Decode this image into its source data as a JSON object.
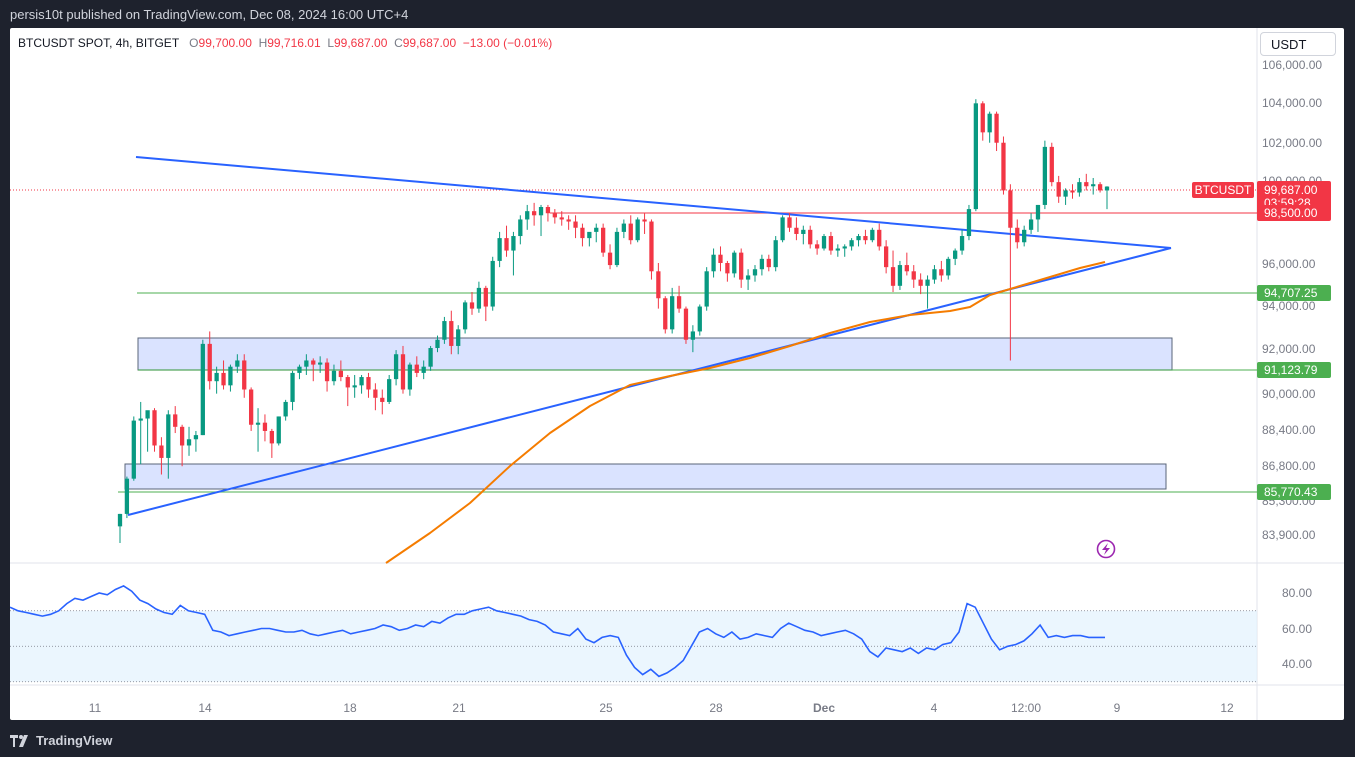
{
  "header": {
    "publisher": "persis10t published on TradingView.com, Dec 08, 2024 16:00 UTC+4"
  },
  "footer": {
    "brand": "TradingView"
  },
  "legend": {
    "symbol": "BTCUSDT SPOT, 4h, BITGET",
    "o_label": "O",
    "o_value": "99,700.00",
    "h_label": "H",
    "h_value": "99,716.01",
    "l_label": "L",
    "l_value": "99,687.00",
    "c_label": "C",
    "c_value": "99,687.00",
    "change": "−13.00 (−0.01%)"
  },
  "unit_button": "USDT",
  "colors": {
    "up": "#089981",
    "down": "#f23645",
    "trend": "#2962ff",
    "ma": "#f57c00",
    "rsi": "#2962ff",
    "zone": "#d6e0ff",
    "level": "#66bb6a"
  },
  "chart_data": {
    "type": "candlestick",
    "interval": "4h",
    "price_axis": {
      "ticks": [
        "106,000.00",
        "104,000.00",
        "102,000.00",
        "100,000.00",
        "96,000.00",
        "94,000.00",
        "92,000.00",
        "90,000.00",
        "88,400.00",
        "86,800.00",
        "85,300.00",
        "83,900.00"
      ]
    },
    "time_axis": {
      "ticks": [
        "11",
        "14",
        "18",
        "21",
        "25",
        "28",
        "Dec",
        "4",
        "12:00",
        "9",
        "12"
      ]
    },
    "last_price": {
      "symbol": "BTCUSDT",
      "price": "99,687.00",
      "countdown": "03:59:28"
    },
    "levels": [
      {
        "price": "98,500.00",
        "color": "#f23645"
      },
      {
        "price": "94,707.25",
        "color": "#4caf50"
      },
      {
        "price": "91,123.79",
        "color": "#4caf50"
      },
      {
        "price": "85,770.43",
        "color": "#4caf50"
      }
    ],
    "rsi_axis": {
      "ticks": [
        "80.00",
        "60.00",
        "40.00"
      ]
    },
    "candles": [
      [
        83300,
        83900,
        82500,
        83900
      ],
      [
        83900,
        85700,
        83700,
        85600
      ],
      [
        85600,
        88600,
        85500,
        88400
      ],
      [
        88400,
        89300,
        86300,
        88500
      ],
      [
        88500,
        88700,
        86900,
        88900
      ],
      [
        88900,
        89000,
        86900,
        87200
      ],
      [
        87200,
        87600,
        85800,
        86600
      ],
      [
        86600,
        88900,
        85600,
        88700
      ],
      [
        88700,
        89100,
        87800,
        88100
      ],
      [
        88100,
        88200,
        86200,
        87200
      ],
      [
        87200,
        88100,
        86700,
        87500
      ],
      [
        87500,
        87900,
        86900,
        87700
      ],
      [
        87700,
        92300,
        87700,
        92100
      ],
      [
        92100,
        92700,
        89900,
        90300
      ],
      [
        90300,
        91000,
        89700,
        90700
      ],
      [
        90700,
        91300,
        89900,
        90100
      ],
      [
        90100,
        91100,
        89800,
        91000
      ],
      [
        91000,
        91600,
        90700,
        91300
      ],
      [
        91300,
        91600,
        89500,
        89900
      ],
      [
        89900,
        90000,
        87900,
        88200
      ],
      [
        88200,
        89000,
        86900,
        88300
      ],
      [
        88300,
        88700,
        87400,
        87900
      ],
      [
        87900,
        88000,
        86600,
        87300
      ],
      [
        87300,
        88600,
        87200,
        88600
      ],
      [
        88600,
        89400,
        88400,
        89300
      ],
      [
        89300,
        90800,
        88900,
        90700
      ],
      [
        90700,
        91100,
        90400,
        91000
      ],
      [
        91000,
        91600,
        90600,
        91300
      ],
      [
        91300,
        91400,
        90300,
        91100
      ],
      [
        91100,
        91500,
        90700,
        91200
      ],
      [
        91200,
        91400,
        89800,
        90300
      ],
      [
        90300,
        91100,
        90100,
        90800
      ],
      [
        90800,
        91300,
        90300,
        90500
      ],
      [
        90500,
        90600,
        89100,
        90000
      ],
      [
        90000,
        90600,
        89500,
        90100
      ],
      [
        90100,
        90600,
        89700,
        90500
      ],
      [
        90500,
        90700,
        89500,
        89900
      ],
      [
        89900,
        90200,
        88900,
        89500
      ],
      [
        89500,
        89900,
        88700,
        89300
      ],
      [
        89300,
        90600,
        89200,
        90400
      ],
      [
        90400,
        91800,
        90100,
        91600
      ],
      [
        91600,
        92000,
        89700,
        89900
      ],
      [
        89900,
        91200,
        89600,
        91100
      ],
      [
        91100,
        91500,
        90500,
        90700
      ],
      [
        90700,
        91300,
        90400,
        91000
      ],
      [
        91000,
        92000,
        90800,
        91900
      ],
      [
        91900,
        92500,
        91700,
        92300
      ],
      [
        92300,
        93400,
        92100,
        93200
      ],
      [
        93200,
        93700,
        91600,
        92000
      ],
      [
        92000,
        93000,
        91600,
        92800
      ],
      [
        92800,
        94200,
        92600,
        94100
      ],
      [
        94100,
        94600,
        93500,
        93800
      ],
      [
        93800,
        95100,
        93600,
        94800
      ],
      [
        94800,
        94900,
        93200,
        93900
      ],
      [
        93900,
        96300,
        93700,
        96100
      ],
      [
        96100,
        97500,
        95800,
        97200
      ],
      [
        97200,
        97800,
        96300,
        96600
      ],
      [
        96600,
        97500,
        95400,
        97300
      ],
      [
        97300,
        98300,
        96900,
        98100
      ],
      [
        98100,
        98800,
        97600,
        98500
      ],
      [
        98500,
        98900,
        97800,
        98300
      ],
      [
        98300,
        98800,
        97300,
        98700
      ],
      [
        98700,
        98800,
        98000,
        98400
      ],
      [
        98400,
        98600,
        97900,
        98200
      ],
      [
        98200,
        98500,
        97800,
        98100
      ],
      [
        98100,
        98300,
        97600,
        98000
      ],
      [
        98000,
        98300,
        97200,
        97700
      ],
      [
        97700,
        97900,
        96800,
        97200
      ],
      [
        97200,
        97400,
        96800,
        97500
      ],
      [
        97500,
        97900,
        97000,
        97700
      ],
      [
        97700,
        97900,
        96300,
        96500
      ],
      [
        96500,
        96900,
        95700,
        95900
      ],
      [
        95900,
        97700,
        95800,
        97500
      ],
      [
        97500,
        98100,
        97200,
        97900
      ],
      [
        97900,
        98300,
        96900,
        97100
      ],
      [
        97100,
        98200,
        97000,
        98100
      ],
      [
        98100,
        98400,
        97400,
        98000
      ],
      [
        98000,
        98100,
        95200,
        95600
      ],
      [
        95600,
        96000,
        93800,
        94300
      ],
      [
        94300,
        94400,
        92600,
        92800
      ],
      [
        92800,
        94800,
        92600,
        94400
      ],
      [
        94400,
        94900,
        93600,
        93800
      ],
      [
        93800,
        93900,
        92100,
        92300
      ],
      [
        92300,
        93000,
        91700,
        92700
      ],
      [
        92700,
        94000,
        92500,
        93900
      ],
      [
        93900,
        95800,
        93700,
        95600
      ],
      [
        95600,
        96700,
        95300,
        96400
      ],
      [
        96400,
        96800,
        95600,
        96000
      ],
      [
        96000,
        96100,
        95100,
        95500
      ],
      [
        95500,
        96600,
        95300,
        96500
      ],
      [
        96500,
        96700,
        94800,
        95200
      ],
      [
        95200,
        95700,
        94700,
        95400
      ],
      [
        95400,
        95900,
        95100,
        95700
      ],
      [
        95700,
        96400,
        95400,
        96200
      ],
      [
        96200,
        96400,
        95600,
        95800
      ],
      [
        95800,
        97300,
        95600,
        97100
      ],
      [
        97100,
        98300,
        97000,
        98200
      ],
      [
        98200,
        98400,
        97500,
        97700
      ],
      [
        97700,
        98200,
        97100,
        97400
      ],
      [
        97400,
        97800,
        96900,
        97600
      ],
      [
        97600,
        97800,
        96700,
        96900
      ],
      [
        96900,
        97100,
        96400,
        96700
      ],
      [
        96700,
        97400,
        96600,
        97300
      ],
      [
        97300,
        97500,
        96400,
        96600
      ],
      [
        96600,
        96900,
        96300,
        96700
      ],
      [
        96700,
        96900,
        96300,
        96800
      ],
      [
        96800,
        97200,
        96600,
        97100
      ],
      [
        97100,
        97400,
        96800,
        97300
      ],
      [
        97300,
        97600,
        96900,
        97100
      ],
      [
        97100,
        97700,
        97000,
        97600
      ],
      [
        97600,
        97900,
        96600,
        96800
      ],
      [
        96800,
        97100,
        95500,
        95800
      ],
      [
        95800,
        96600,
        94600,
        94900
      ],
      [
        94900,
        96100,
        94700,
        95900
      ],
      [
        95900,
        96500,
        95400,
        95600
      ],
      [
        95600,
        95900,
        94800,
        95200
      ],
      [
        95200,
        95500,
        94500,
        94900
      ],
      [
        94900,
        95400,
        93800,
        95200
      ],
      [
        95200,
        95900,
        95000,
        95700
      ],
      [
        95700,
        96100,
        95100,
        95400
      ],
      [
        95400,
        96300,
        95200,
        96200
      ],
      [
        96200,
        96700,
        95900,
        96600
      ],
      [
        96600,
        97600,
        96400,
        97300
      ],
      [
        97300,
        98800,
        97100,
        98600
      ],
      [
        98600,
        103900,
        98500,
        103700
      ],
      [
        103700,
        103800,
        101900,
        102300
      ],
      [
        102300,
        103300,
        101800,
        103200
      ],
      [
        103200,
        103300,
        101400,
        101800
      ],
      [
        101800,
        102100,
        99300,
        99500
      ],
      [
        99500,
        99800,
        91300,
        97700
      ],
      [
        97700,
        98100,
        96700,
        97000
      ],
      [
        97000,
        97800,
        96800,
        97600
      ],
      [
        97600,
        98400,
        97400,
        98100
      ],
      [
        98100,
        98800,
        97500,
        98800
      ],
      [
        98800,
        101900,
        98600,
        101600
      ],
      [
        101600,
        101800,
        99700,
        99900
      ],
      [
        99900,
        100200,
        98900,
        99200
      ],
      [
        99200,
        99600,
        98800,
        99500
      ],
      [
        99500,
        99800,
        99100,
        99400
      ],
      [
        99400,
        100100,
        99200,
        99900
      ],
      [
        99900,
        100300,
        99500,
        99700
      ],
      [
        99700,
        100100,
        99300,
        99800
      ],
      [
        99800,
        99900,
        99400,
        99500
      ],
      [
        99500,
        99700,
        98600,
        99687
      ]
    ]
  }
}
